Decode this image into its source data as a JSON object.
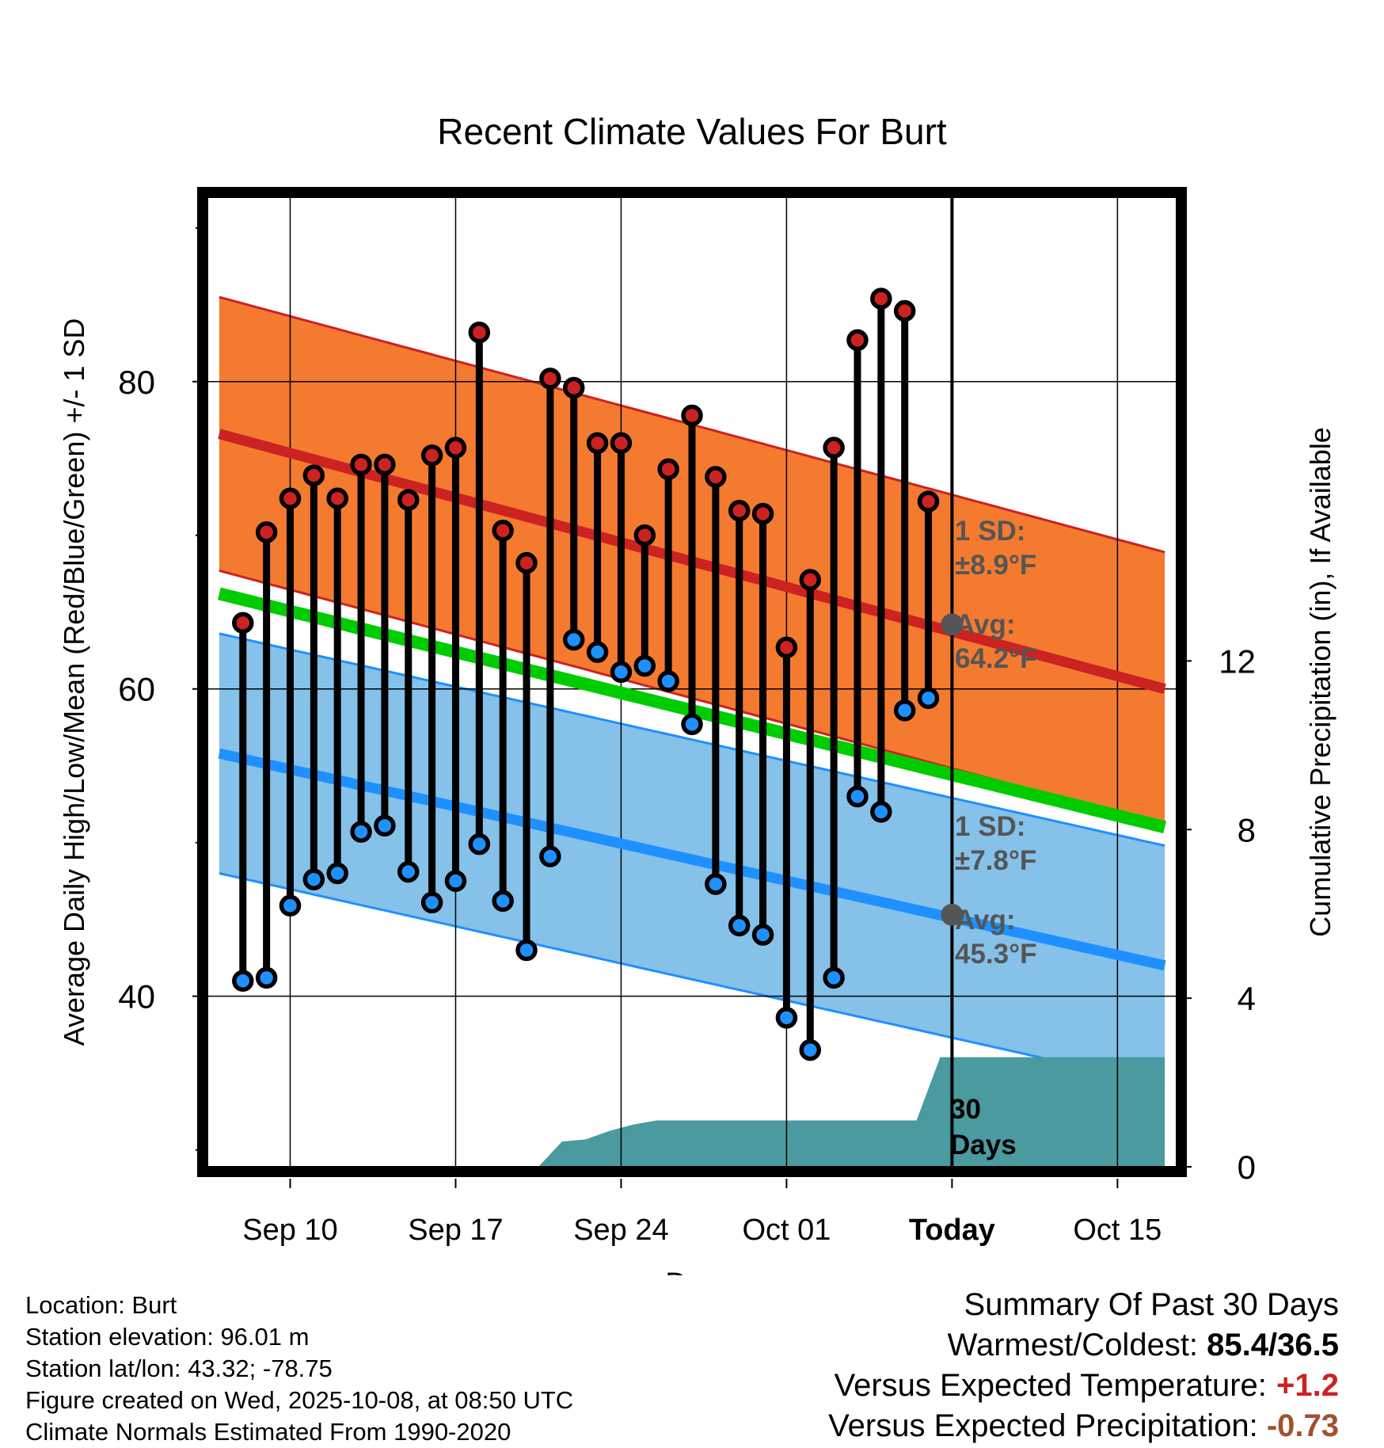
{
  "chart_data": {
    "type": "line",
    "title": "Recent Climate Values For Burt",
    "xlabel": "Day",
    "ylabel": "Average Daily High/Low/Mean (Red/Blue/Green) +/- 1 SD",
    "y2label": "Cumulative Precipitation (in), If Available",
    "xlim": [
      -3.5,
      37.5
    ],
    "ylim": [
      28.9,
      92.0
    ],
    "y2lim": [
      0,
      23
    ],
    "x_ticks": [
      {
        "x": 0,
        "label": "Sep 10"
      },
      {
        "x": 7,
        "label": "Sep 17"
      },
      {
        "x": 14,
        "label": "Sep 24"
      },
      {
        "x": 21,
        "label": "Oct 01"
      },
      {
        "x": 28,
        "label": "Today"
      },
      {
        "x": 35,
        "label": "Oct 15"
      }
    ],
    "y_ticks": [
      40,
      60,
      80
    ],
    "y2_ticks": [
      0,
      4,
      8,
      12
    ],
    "days": [
      -2,
      -1,
      0,
      1,
      2,
      3,
      4,
      5,
      6,
      7,
      8,
      9,
      10,
      11,
      12,
      13,
      14,
      15,
      16,
      17,
      18,
      19,
      20,
      21,
      22,
      23,
      24,
      25,
      26,
      27
    ],
    "highs": [
      64.3,
      70.2,
      72.4,
      73.9,
      72.4,
      74.6,
      74.6,
      72.3,
      75.2,
      75.7,
      83.2,
      70.3,
      68.2,
      80.2,
      79.6,
      76.0,
      76.0,
      70.0,
      74.3,
      77.8,
      73.8,
      71.6,
      71.4,
      62.7,
      67.1,
      75.7,
      82.7,
      85.4,
      84.6,
      72.2
    ],
    "lows": [
      41.0,
      41.2,
      45.9,
      47.6,
      48.0,
      50.7,
      51.1,
      48.1,
      46.1,
      47.5,
      49.9,
      46.2,
      43.0,
      49.1,
      63.2,
      62.4,
      61.1,
      61.5,
      60.5,
      57.7,
      47.3,
      44.6,
      44.0,
      38.6,
      36.5,
      41.2,
      53.0,
      52.0,
      58.6,
      59.4
    ],
    "normal_high": {
      "start": [
        -3,
        76.6
      ],
      "today": [
        28,
        64.2
      ],
      "end": [
        37,
        60.0
      ],
      "sd": 8.9
    },
    "normal_low": {
      "start": [
        -3,
        55.8
      ],
      "today": [
        28,
        45.3
      ],
      "end": [
        37,
        42.0
      ],
      "sd": 7.8
    },
    "normal_mean": {
      "start": [
        -3,
        66.2
      ],
      "end": [
        37,
        51.0
      ]
    },
    "precip": {
      "x": [
        -3,
        10.5,
        11.5,
        12.5,
        13.5,
        14.5,
        15.5,
        16.5,
        26.5,
        27.5,
        37
      ],
      "y": [
        0,
        0,
        0.6,
        0.65,
        0.85,
        1.0,
        1.1,
        1.1,
        1.1,
        2.6,
        2.6
      ]
    },
    "colors": {
      "high": "#cc2222",
      "low": "#1e90ff",
      "mean": "#00cc00",
      "high_band": "#f47a30",
      "low_band": "#85c1e9",
      "precip": "#4a9aa0"
    }
  },
  "annotations": {
    "high_sd_label": "1 SD:",
    "high_sd_value": "±8.9°F",
    "high_avg_label": "Avg:",
    "high_avg_value": "64.2°F",
    "low_sd_label": "1 SD:",
    "low_sd_value": "±7.8°F",
    "low_avg_label": "Avg:",
    "low_avg_value": "45.3°F",
    "period_label_number": "30",
    "period_label_unit": "Days"
  },
  "station": {
    "location": "Location: Burt",
    "elevation": "Station elevation: 96.01 m",
    "latlon": "Station lat/lon: 43.32; -78.75",
    "created": "Figure created on Wed, 2025-10-08, at 08:50 UTC",
    "normals": "Climate Normals Estimated From 1990-2020"
  },
  "summary": {
    "title": "Summary Of Past 30 Days",
    "warmest_coldest_label": "Warmest/Coldest:",
    "warmest_coldest_value": "85.4/36.5",
    "temp_label": "Versus Expected Temperature:",
    "temp_value": "+1.2",
    "temp_color": "#cc2222",
    "precip_label": "Versus Expected Precipitation:",
    "precip_value": "-0.73",
    "precip_color": "#a0522d"
  }
}
